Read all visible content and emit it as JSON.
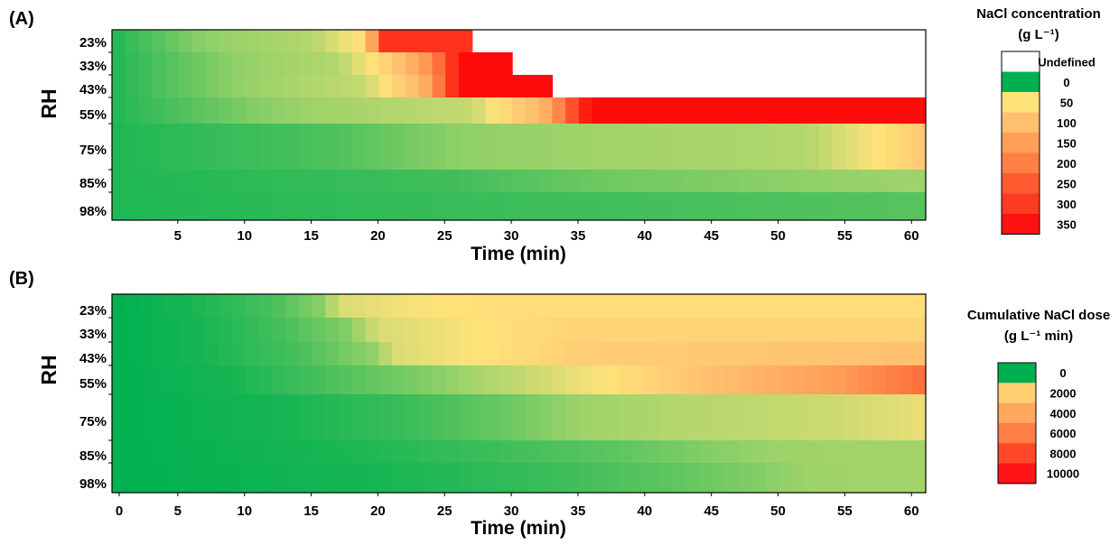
{
  "chart_data": [
    {
      "type": "heatmap",
      "panel_label": "(A)",
      "ylabel": "RH",
      "xlabel": "Time (min)",
      "xlim": [
        0,
        60
      ],
      "x_ticks": [
        "5",
        "10",
        "15",
        "20",
        "25",
        "30",
        "35",
        "40",
        "45",
        "50",
        "55",
        "60"
      ],
      "rows": [
        {
          "label": "23%",
          "profile": [
            [
              0,
              0.2
            ],
            [
              7,
              0.9
            ],
            [
              15,
              1.2
            ],
            [
              19,
              2.2
            ],
            [
              20,
              5.5
            ],
            [
              27,
              5.5
            ]
          ],
          "end": 27
        },
        {
          "label": "33%",
          "profile": [
            [
              0,
              0.2
            ],
            [
              9,
              0.9
            ],
            [
              17,
              1.2
            ],
            [
              20,
              2.2
            ],
            [
              23,
              3.8
            ],
            [
              25,
              5
            ],
            [
              26,
              6
            ],
            [
              30,
              6
            ]
          ],
          "end": 30
        },
        {
          "label": "43%",
          "profile": [
            [
              0,
              0.2
            ],
            [
              9,
              0.9
            ],
            [
              19,
              1.4
            ],
            [
              23,
              3.2
            ],
            [
              25,
              5
            ],
            [
              26,
              6
            ],
            [
              33,
              6
            ]
          ],
          "end": 33
        },
        {
          "label": "55%",
          "profile": [
            [
              0,
              0.2
            ],
            [
              12,
              0.9
            ],
            [
              27,
              1.4
            ],
            [
              32,
              3.2
            ],
            [
              35,
              5.5
            ],
            [
              36,
              6
            ],
            [
              61,
              6
            ]
          ],
          "end": 61
        },
        {
          "label": "75%",
          "profile": [
            [
              0,
              0.2
            ],
            [
              17,
              0.5
            ],
            [
              26,
              0.9
            ],
            [
              52,
              1.2
            ],
            [
              58,
              2.1
            ],
            [
              61,
              2.8
            ]
          ],
          "end": 61
        },
        {
          "label": "85%",
          "profile": [
            [
              0,
              0.2
            ],
            [
              25,
              0.4
            ],
            [
              37,
              0.7
            ],
            [
              55,
              0.95
            ],
            [
              61,
              1.0
            ]
          ],
          "end": 61
        },
        {
          "label": "98%",
          "profile": [
            [
              0,
              0.2
            ],
            [
              61,
              0.55
            ]
          ],
          "end": 61
        }
      ],
      "colorbar": {
        "title": "NaCl concentration",
        "unit": "(g L⁻¹)",
        "undefined_label": "Undefined",
        "labels": [
          "0",
          "50",
          "100",
          "150",
          "200",
          "250",
          "300",
          "350"
        ],
        "colors": [
          "#00B050",
          "#FFE27A",
          "#FFC070",
          "#FF9F58",
          "#FF7F44",
          "#FF5A30",
          "#FF3A22",
          "#FF1111"
        ]
      }
    },
    {
      "type": "heatmap",
      "panel_label": "(B)",
      "ylabel": "RH",
      "xlabel": "Time (min)",
      "xlim": [
        0,
        60
      ],
      "x_ticks": [
        "0",
        "5",
        "10",
        "15",
        "20",
        "25",
        "30",
        "35",
        "40",
        "45",
        "50",
        "55",
        "60"
      ],
      "rows": [
        {
          "label": "23%",
          "profile": [
            [
              0,
              0
            ],
            [
              6,
              0.15
            ],
            [
              12,
              0.45
            ],
            [
              16,
              0.9
            ],
            [
              17,
              1.6
            ],
            [
              22,
              1.9
            ],
            [
              29,
              2.15
            ],
            [
              61,
              2.15
            ]
          ],
          "end": 61
        },
        {
          "label": "33%",
          "profile": [
            [
              0,
              0
            ],
            [
              7,
              0.15
            ],
            [
              13,
              0.45
            ],
            [
              18,
              0.85
            ],
            [
              20,
              1.6
            ],
            [
              28,
              2.0
            ],
            [
              34,
              2.4
            ],
            [
              61,
              2.4
            ]
          ],
          "end": 61
        },
        {
          "label": "43%",
          "profile": [
            [
              0,
              0
            ],
            [
              7,
              0.15
            ],
            [
              14,
              0.45
            ],
            [
              20,
              0.95
            ],
            [
              21,
              1.6
            ],
            [
              29,
              2.1
            ],
            [
              35,
              2.6
            ],
            [
              61,
              3.0
            ]
          ],
          "end": 61
        },
        {
          "label": "55%",
          "profile": [
            [
              0,
              0
            ],
            [
              9,
              0.15
            ],
            [
              17,
              0.5
            ],
            [
              25,
              0.9
            ],
            [
              31,
              1.4
            ],
            [
              37,
              2.0
            ],
            [
              44,
              2.9
            ],
            [
              52,
              3.8
            ],
            [
              61,
              4.7
            ]
          ],
          "end": 61
        },
        {
          "label": "75%",
          "profile": [
            [
              0,
              0
            ],
            [
              13,
              0.15
            ],
            [
              23,
              0.4
            ],
            [
              30,
              0.7
            ],
            [
              35,
              1.0
            ],
            [
              42,
              1.2
            ],
            [
              55,
              1.5
            ],
            [
              61,
              1.8
            ]
          ],
          "end": 61
        },
        {
          "label": "85%",
          "profile": [
            [
              0,
              0
            ],
            [
              16,
              0.15
            ],
            [
              27,
              0.35
            ],
            [
              38,
              0.6
            ],
            [
              45,
              0.85
            ],
            [
              50,
              1.0
            ],
            [
              61,
              1.05
            ]
          ],
          "end": 61
        },
        {
          "label": "98%",
          "profile": [
            [
              0,
              0
            ],
            [
              20,
              0.15
            ],
            [
              32,
              0.35
            ],
            [
              42,
              0.6
            ],
            [
              49,
              0.85
            ],
            [
              52,
              1.0
            ],
            [
              61,
              1.05
            ]
          ],
          "end": 61
        }
      ],
      "colorbar": {
        "title": "Cumulative NaCl dose",
        "unit": "(g L⁻¹ min)",
        "labels": [
          "0",
          "2000",
          "4000",
          "6000",
          "8000",
          "10000"
        ],
        "colors": [
          "#00B050",
          "#FFD070",
          "#FFA75A",
          "#FF7E45",
          "#FF4A2A",
          "#FF1515"
        ]
      }
    }
  ]
}
